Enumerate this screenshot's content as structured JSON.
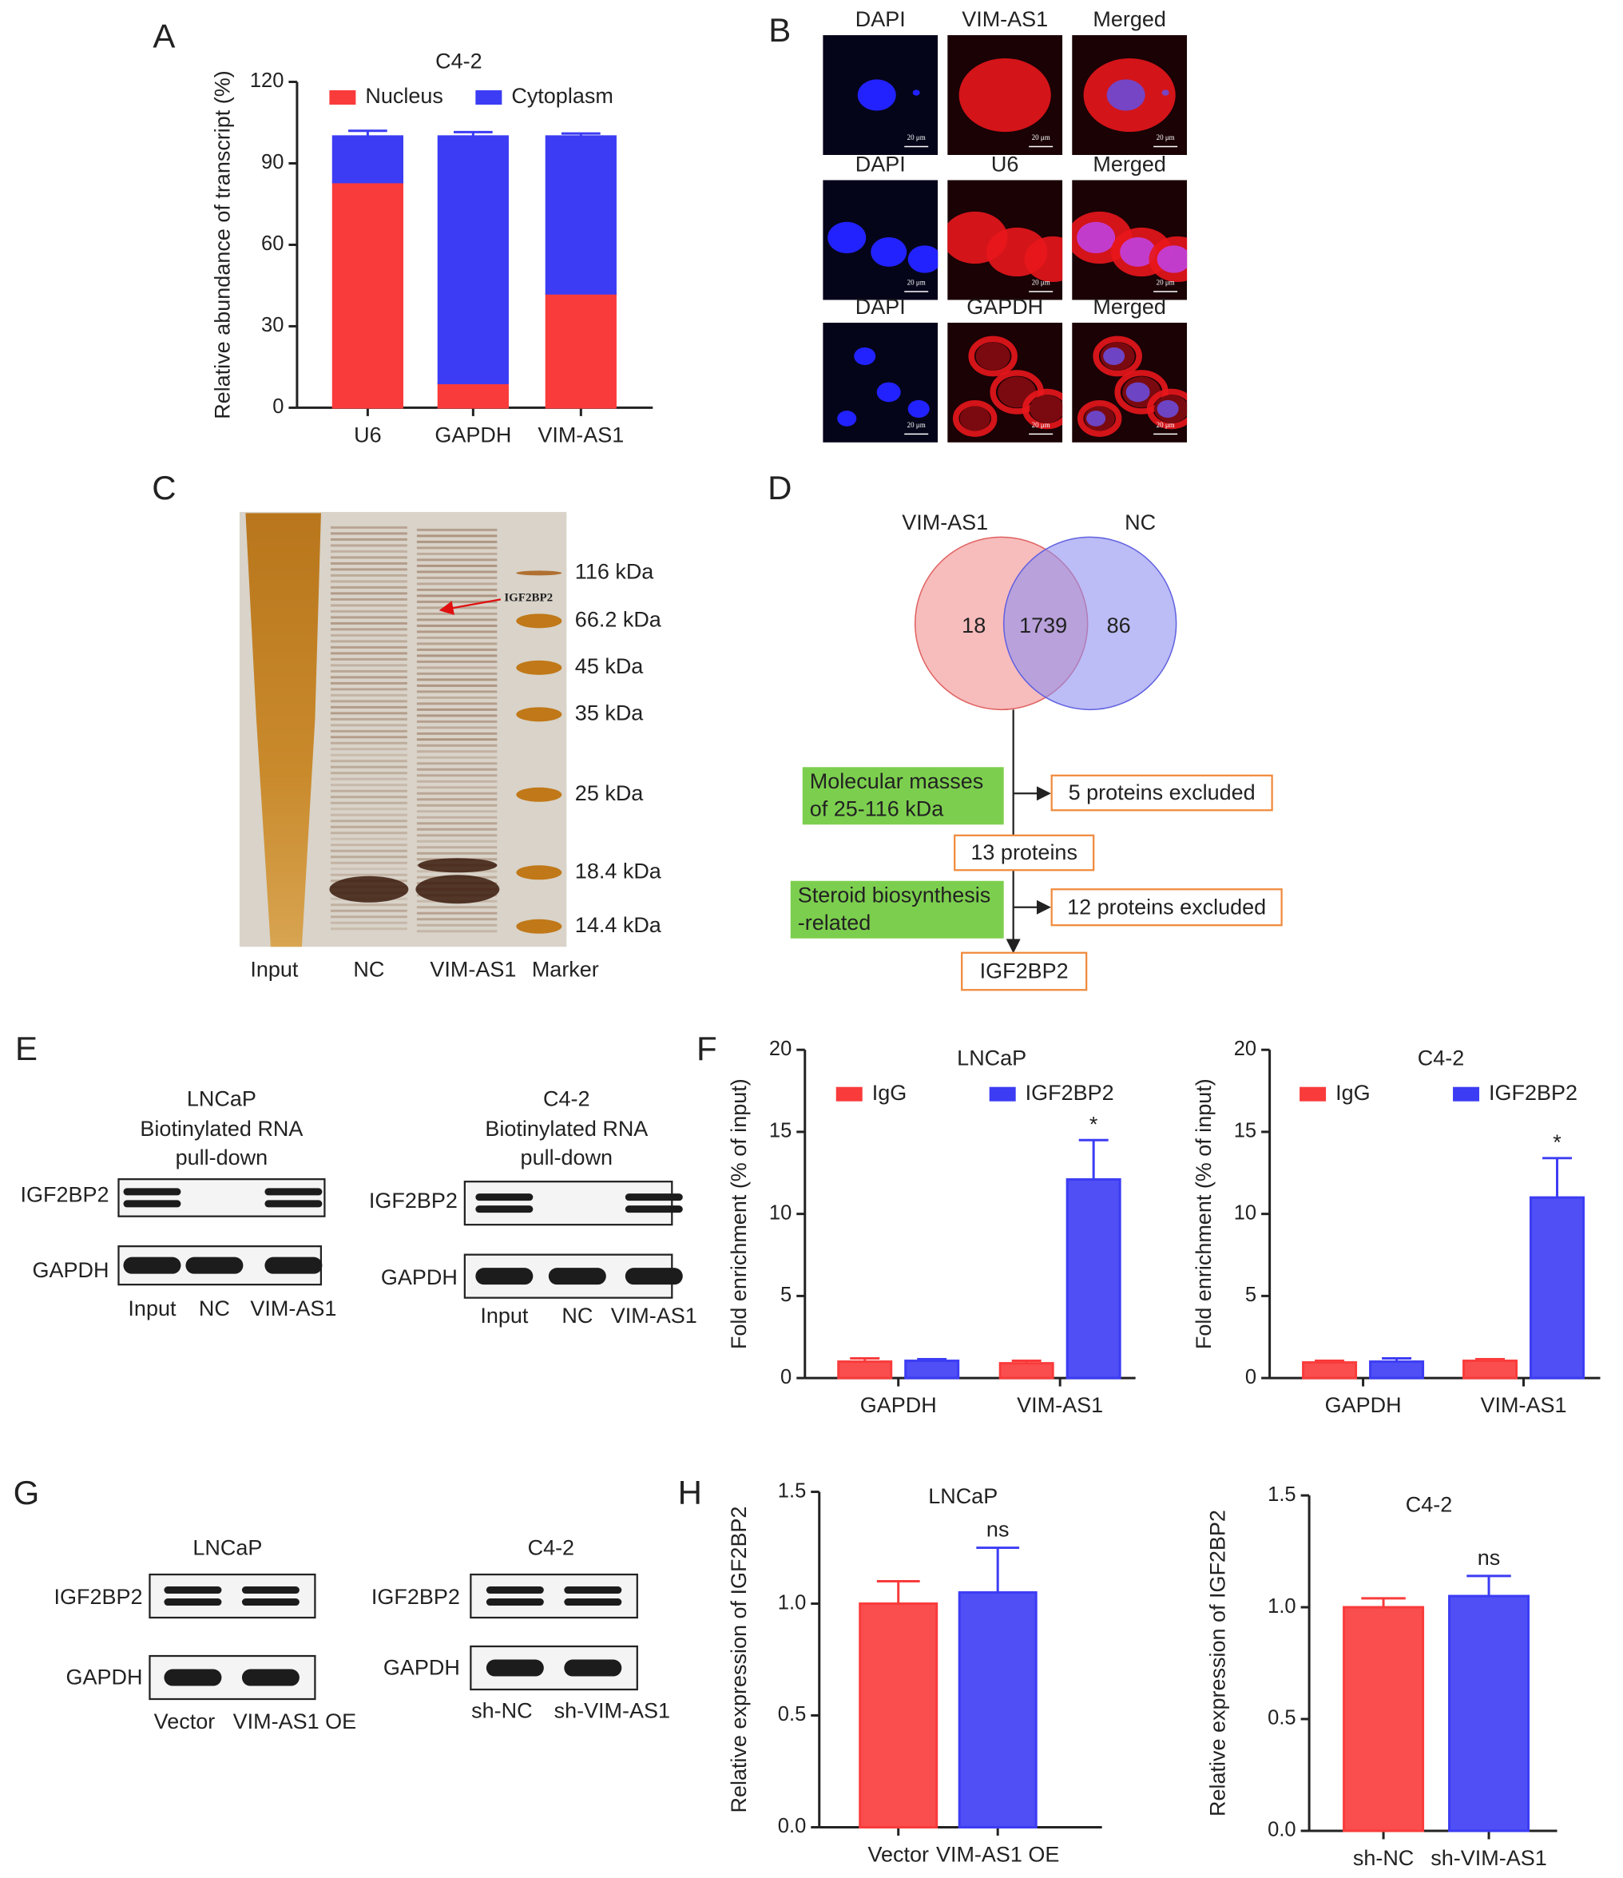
{
  "panel_labels": [
    "A",
    "B",
    "C",
    "D",
    "E",
    "F",
    "G",
    "H"
  ],
  "chart_data": [
    {
      "type": "stacked_bar",
      "title": "C4-2",
      "y_label": "Relative abundance of transcript (%)",
      "categories": [
        "U6",
        "GAPDH",
        "VIM-AS1"
      ],
      "series": [
        {
          "name": "Nucleus",
          "color": "#f93b3b",
          "values": [
            83,
            9,
            42
          ],
          "errors": [
            1,
            0.5,
            0.5
          ]
        },
        {
          "name": "Cytoplasm",
          "color": "#3c3cf4",
          "values": [
            17,
            91,
            58
          ],
          "errors": [
            2,
            1.5,
            1
          ]
        }
      ],
      "ylim": [
        0,
        120
      ],
      "yticks": [
        0,
        30,
        60,
        90,
        120
      ]
    },
    {
      "type": "grouped_bar",
      "title": "LNCaP",
      "y_label": "Fold enrichment (% of input)",
      "categories": [
        "GAPDH",
        "VIM-AS1"
      ],
      "series": [
        {
          "name": "IgG",
          "color": "#f93b3b",
          "values": [
            1,
            0.9
          ],
          "errors": [
            0.2,
            0.15
          ]
        },
        {
          "name": "IGF2BP2",
          "color": "#3c3cf4",
          "values": [
            1.05,
            12.1
          ],
          "errors": [
            0.1,
            2.4
          ]
        }
      ],
      "annotations": [
        {
          "series": 1,
          "index": 1,
          "text": "*"
        }
      ],
      "ylim": [
        0,
        20
      ],
      "yticks": [
        0,
        5,
        10,
        15,
        20
      ]
    },
    {
      "type": "grouped_bar",
      "title": "C4-2",
      "y_label": "Fold enrichment (% of input)",
      "categories": [
        "GAPDH",
        "VIM-AS1"
      ],
      "series": [
        {
          "name": "IgG",
          "color": "#f93b3b",
          "values": [
            0.95,
            1.05
          ],
          "errors": [
            0.1,
            0.1
          ]
        },
        {
          "name": "IGF2BP2",
          "color": "#3c3cf4",
          "values": [
            1.0,
            11.0
          ],
          "errors": [
            0.2,
            2.4
          ]
        }
      ],
      "annotations": [
        {
          "series": 1,
          "index": 1,
          "text": "*"
        }
      ],
      "ylim": [
        0,
        20
      ],
      "yticks": [
        0,
        5,
        10,
        15,
        20
      ]
    },
    {
      "type": "bar",
      "title": "LNCaP",
      "y_label": "Relative expression of IGF2BP2",
      "categories": [
        "Vector",
        "VIM-AS1 OE"
      ],
      "values": [
        1.0,
        1.05
      ],
      "errors": [
        0.1,
        0.2
      ],
      "colors": [
        "#f93b3b",
        "#3c3cf4"
      ],
      "annotations": [
        {
          "index": 1,
          "text": "ns"
        }
      ],
      "ylim": [
        0,
        1.5
      ],
      "yticks": [
        {
          "value": 0,
          "label": "0.0"
        },
        0.5,
        {
          "value": 1,
          "label": "1.0"
        },
        1.5
      ]
    },
    {
      "type": "bar",
      "title": "C4-2",
      "y_label": "Relative expression of IGF2BP2",
      "categories": [
        "sh-NC",
        "sh-VIM-AS1"
      ],
      "values": [
        1.0,
        1.05
      ],
      "errors": [
        0.04,
        0.09
      ],
      "colors": [
        "#f93b3b",
        "#3c3cf4"
      ],
      "annotations": [
        {
          "index": 1,
          "text": "ns"
        }
      ],
      "ylim": [
        0,
        1.5
      ],
      "yticks": [
        {
          "value": 0,
          "label": "0.0"
        },
        0.5,
        {
          "value": 1,
          "label": "1.0"
        },
        1.5
      ]
    }
  ],
  "micrographs": {
    "rows": [
      [
        "DAPI",
        "VIM-AS1",
        "Merged"
      ],
      [
        "DAPI",
        "U6",
        "Merged"
      ],
      [
        "DAPI",
        "GAPDH",
        "Merged"
      ]
    ],
    "scale_bar": "20 μm"
  },
  "gel": {
    "lanes": [
      "Input",
      "NC",
      "VIM-AS1",
      "Marker"
    ],
    "markers": [
      "116 kDa",
      "66.2 kDa",
      "45 kDa",
      "35 kDa",
      "25 kDa",
      "18.4 kDa",
      "14.4 kDa"
    ],
    "arrow_label": "IGF2BP2"
  },
  "venn": {
    "sets": [
      "VIM-AS1",
      "NC"
    ],
    "counts": [
      18,
      1739,
      86
    ]
  },
  "flow": {
    "filters": [
      [
        "Molecular masses",
        "of 25-116 kDa"
      ],
      [
        "Steroid biosynthesis",
        "-related"
      ]
    ],
    "excluded": [
      "5 proteins excluded",
      "12 proteins excluded"
    ],
    "results": [
      "13 proteins",
      "IGF2BP2"
    ]
  },
  "pulldown_blots": [
    {
      "title": [
        "LNCaP",
        "Biotinylated RNA",
        "pull-down"
      ],
      "rows": [
        "IGF2BP2",
        "GAPDH"
      ],
      "lanes": [
        "Input",
        "NC",
        "VIM-AS1"
      ]
    },
    {
      "title": [
        "C4-2",
        "Biotinylated RNA",
        "pull-down"
      ],
      "rows": [
        "IGF2BP2",
        "GAPDH"
      ],
      "lanes": [
        "Input",
        "NC",
        "VIM-AS1"
      ]
    }
  ],
  "expression_blots": [
    {
      "title": "LNCaP",
      "rows": [
        "IGF2BP2",
        "GAPDH"
      ],
      "lanes": [
        "Vector",
        "VIM-AS1 OE"
      ]
    },
    {
      "title": "C4-2",
      "rows": [
        "IGF2BP2",
        "GAPDH"
      ],
      "lanes": [
        "sh-NC",
        "sh-VIM-AS1"
      ]
    }
  ]
}
